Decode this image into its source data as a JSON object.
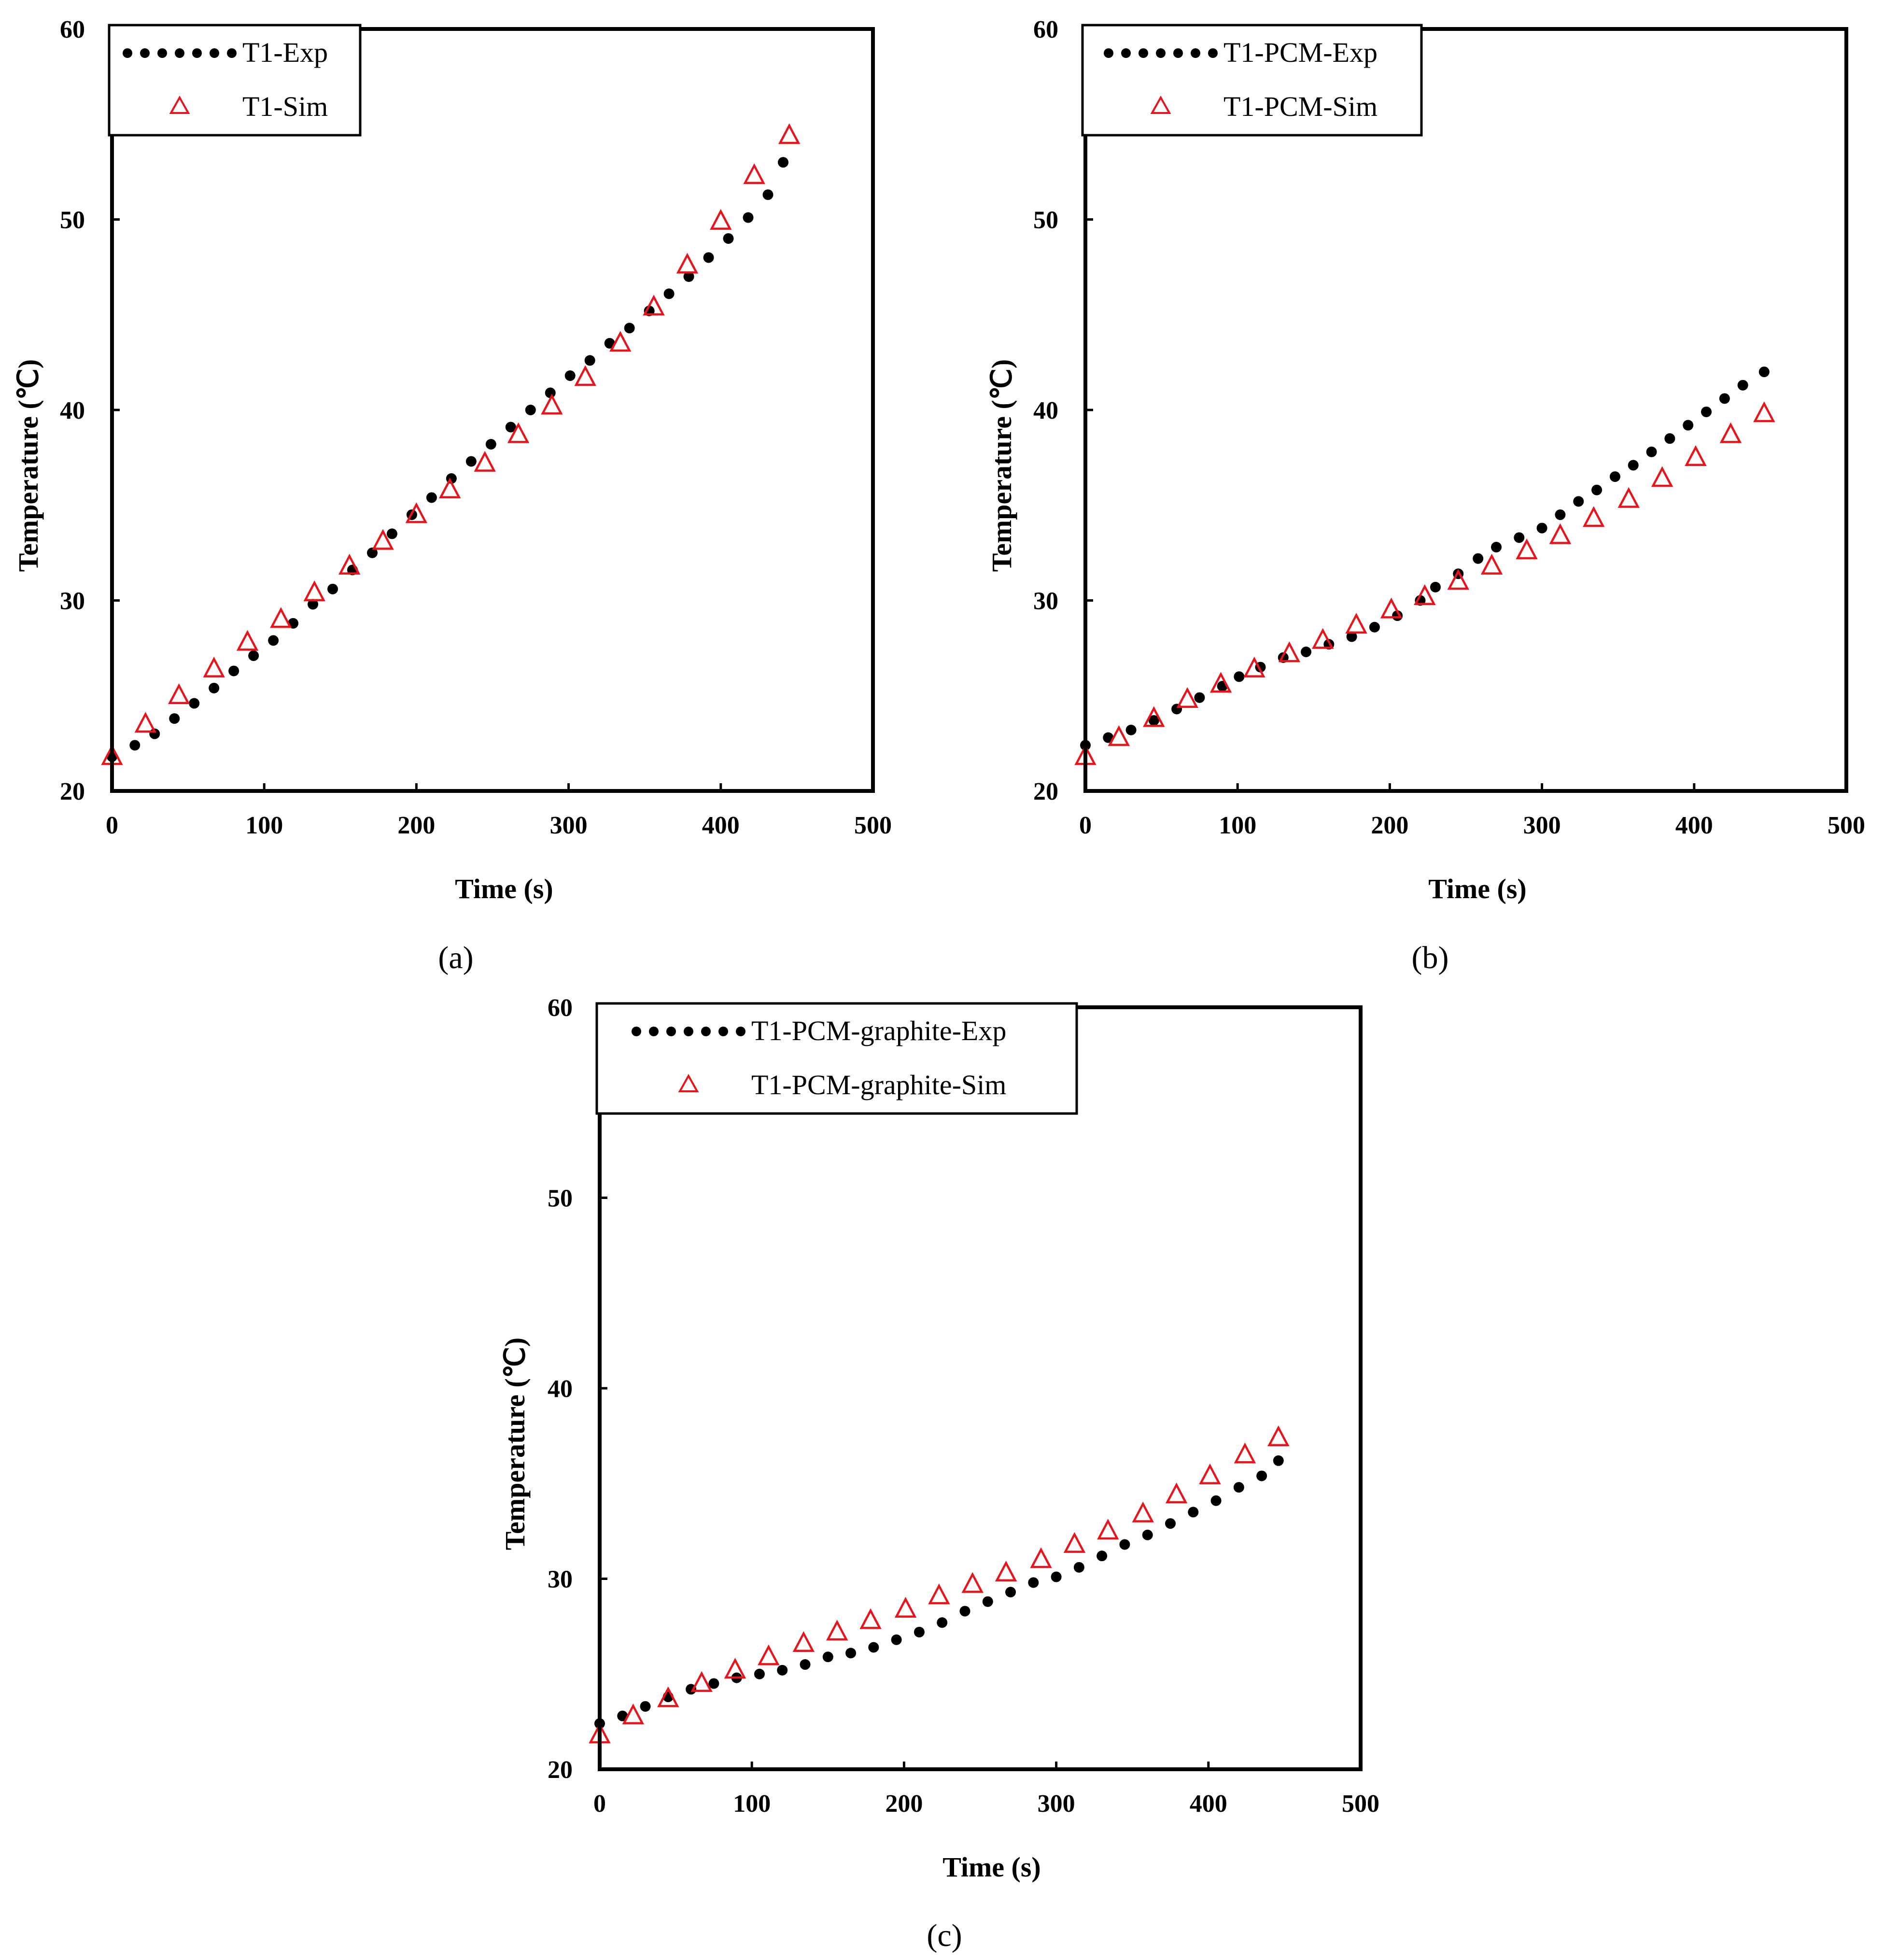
{
  "chart_data": [
    {
      "type": "scatter",
      "caption": "(a)",
      "xlabel": "Time (s)",
      "ylabel": "Temperature (℃)",
      "xlim": [
        0,
        500
      ],
      "ylim": [
        20,
        60
      ],
      "xticks": [
        "0",
        "100",
        "200",
        "300",
        "400",
        "500"
      ],
      "yticks": [
        "20",
        "30",
        "40",
        "50",
        "60"
      ],
      "legend_position": "top-left",
      "series": [
        {
          "name": "T1-Exp",
          "marker": "dot",
          "color": "#000000",
          "x": [
            0,
            15,
            28,
            41,
            54,
            67,
            80,
            93,
            106,
            119,
            132,
            145,
            158,
            171,
            184,
            197,
            210,
            223,
            236,
            249,
            262,
            275,
            288,
            301,
            314,
            327,
            340,
            353,
            366,
            379,
            392,
            405,
            418,
            431,
            441
          ],
          "y": [
            21.8,
            22.4,
            23.0,
            23.8,
            24.6,
            25.4,
            26.3,
            27.1,
            27.9,
            28.8,
            29.8,
            30.6,
            31.6,
            32.5,
            33.5,
            34.5,
            35.4,
            36.4,
            37.3,
            38.2,
            39.1,
            40.0,
            40.9,
            41.8,
            42.6,
            43.5,
            44.3,
            45.2,
            46.1,
            47.0,
            48.0,
            49.0,
            50.1,
            51.3,
            53.0
          ]
        },
        {
          "name": "T1-Sim",
          "marker": "triangle",
          "color": "#e8141b",
          "x": [
            0,
            22,
            44,
            67,
            89,
            111,
            133,
            156,
            178,
            200,
            222,
            245,
            267,
            289,
            311,
            334,
            356,
            378,
            400,
            422,
            445
          ],
          "y": [
            21.8,
            23.5,
            25.0,
            26.4,
            27.8,
            29.0,
            30.4,
            31.8,
            33.1,
            34.5,
            35.8,
            37.2,
            38.7,
            40.2,
            41.7,
            43.5,
            45.4,
            47.6,
            49.9,
            52.3,
            54.4
          ]
        }
      ]
    },
    {
      "type": "scatter",
      "caption": "(b)",
      "xlabel": "Time (s)",
      "ylabel": "Temperature (℃)",
      "xlim": [
        0,
        500
      ],
      "ylim": [
        20,
        60
      ],
      "xticks": [
        "0",
        "100",
        "200",
        "300",
        "400",
        "500"
      ],
      "yticks": [
        "20",
        "30",
        "40",
        "50",
        "60"
      ],
      "legend_position": "top-left",
      "series": [
        {
          "name": "T1-PCM-Exp",
          "marker": "dot",
          "color": "#000000",
          "x": [
            0,
            15,
            30,
            45,
            60,
            75,
            90,
            101,
            115,
            130,
            145,
            160,
            175,
            190,
            205,
            220,
            230,
            245,
            258,
            270,
            285,
            300,
            312,
            324,
            336,
            348,
            360,
            372,
            384,
            396,
            408,
            420,
            432,
            446
          ],
          "y": [
            22.4,
            22.8,
            23.2,
            23.7,
            24.3,
            24.9,
            25.5,
            26.0,
            26.5,
            27.0,
            27.3,
            27.7,
            28.1,
            28.6,
            29.2,
            30.0,
            30.7,
            31.4,
            32.2,
            32.8,
            33.3,
            33.8,
            34.5,
            35.2,
            35.8,
            36.5,
            37.1,
            37.8,
            38.5,
            39.2,
            39.9,
            40.6,
            41.3,
            42.0
          ]
        },
        {
          "name": "T1-PCM-Sim",
          "marker": "triangle",
          "color": "#e8141b",
          "x": [
            0,
            22,
            45,
            67,
            89,
            111,
            134,
            156,
            178,
            201,
            223,
            245,
            267,
            290,
            312,
            334,
            357,
            379,
            401,
            424,
            446
          ],
          "y": [
            21.8,
            22.8,
            23.8,
            24.8,
            25.6,
            26.4,
            27.2,
            27.9,
            28.7,
            29.5,
            30.2,
            31.0,
            31.8,
            32.6,
            33.4,
            34.3,
            35.3,
            36.4,
            37.5,
            38.7,
            39.8
          ]
        }
      ]
    },
    {
      "type": "scatter",
      "caption": "(c)",
      "xlabel": "Time (s)",
      "ylabel": "Temperature (℃)",
      "xlim": [
        0,
        500
      ],
      "ylim": [
        20,
        60
      ],
      "xticks": [
        "0",
        "100",
        "200",
        "300",
        "400",
        "500"
      ],
      "yticks": [
        "20",
        "30",
        "40",
        "50",
        "60"
      ],
      "legend_position": "top-left",
      "series": [
        {
          "name": "T1-PCM-graphite-Exp",
          "marker": "dot",
          "color": "#000000",
          "x": [
            0,
            15,
            30,
            45,
            60,
            75,
            90,
            105,
            120,
            135,
            150,
            165,
            180,
            195,
            210,
            225,
            240,
            255,
            270,
            285,
            300,
            315,
            330,
            345,
            360,
            375,
            390,
            405,
            420,
            435,
            446
          ],
          "y": [
            22.4,
            22.8,
            23.3,
            23.8,
            24.2,
            24.5,
            24.8,
            25.0,
            25.2,
            25.5,
            25.9,
            26.1,
            26.4,
            26.8,
            27.2,
            27.7,
            28.3,
            28.8,
            29.3,
            29.8,
            30.1,
            30.6,
            31.2,
            31.8,
            32.3,
            32.9,
            33.5,
            34.1,
            34.8,
            35.4,
            36.2
          ]
        },
        {
          "name": "T1-PCM-graphite-Sim",
          "marker": "triangle",
          "color": "#e8141b",
          "x": [
            0,
            22,
            45,
            67,
            89,
            111,
            134,
            156,
            178,
            201,
            223,
            245,
            267,
            290,
            312,
            334,
            357,
            379,
            401,
            424,
            446
          ],
          "y": [
            21.8,
            22.8,
            23.7,
            24.5,
            25.2,
            25.9,
            26.6,
            27.2,
            27.8,
            28.4,
            29.1,
            29.7,
            30.3,
            31.0,
            31.8,
            32.5,
            33.4,
            34.4,
            35.4,
            36.5,
            37.4
          ]
        }
      ]
    }
  ]
}
